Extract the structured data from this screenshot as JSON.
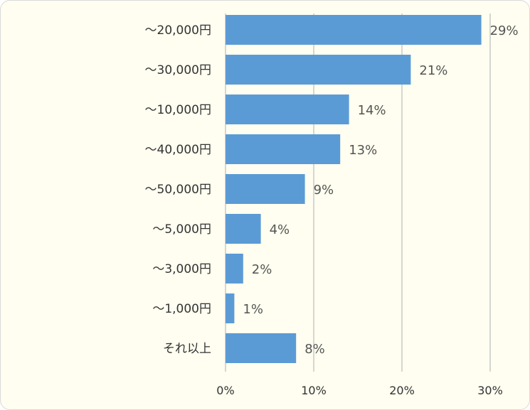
{
  "chart_data": {
    "type": "bar",
    "orientation": "horizontal",
    "categories": [
      "～20,000円",
      "～30,000円",
      "～10,000円",
      "～40,000円",
      "～50,000円",
      "～5,000円",
      "～3,000円",
      "～1,000円",
      "それ以上"
    ],
    "values": [
      29,
      21,
      14,
      13,
      9,
      4,
      2,
      1,
      8
    ],
    "value_labels": [
      "29%",
      "21%",
      "14%",
      "13%",
      "9%",
      "4%",
      "2%",
      "1%",
      "8%"
    ],
    "x_ticks": [
      "0%",
      "10%",
      "20%",
      "30%"
    ],
    "x_tick_values": [
      0,
      10,
      20,
      30
    ],
    "xlim": [
      0,
      30
    ],
    "grid": true,
    "legend": "none",
    "title": "",
    "xlabel": "",
    "ylabel": "",
    "bar_color": "#5b9bd5"
  }
}
